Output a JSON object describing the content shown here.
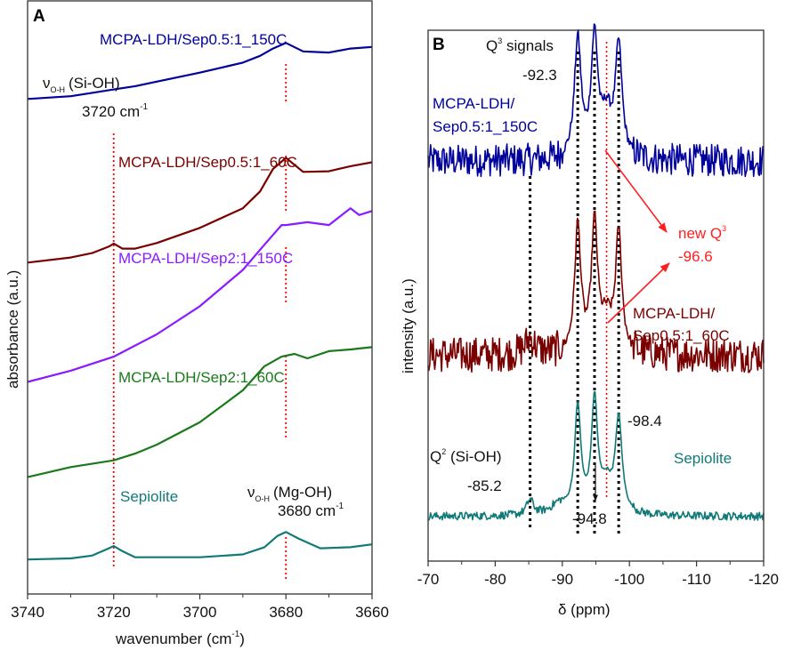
{
  "chart_data": [
    {
      "panel_label": "A",
      "type": "line",
      "title": "",
      "xlabel": "wavenumber (cm⁻¹)",
      "xlabel_main": "wavenumber (cm",
      "xlabel_sup": "-1",
      "xlabel_end": ")",
      "ylabel": "absorbance (a.u.)",
      "xlim": [
        3740,
        3660
      ],
      "x_reversed": true,
      "ylim": [
        0,
        10
      ],
      "xticks": [
        3740,
        3720,
        3700,
        3680,
        3660
      ],
      "xticks_minor": [
        3730,
        3710,
        3690,
        3670
      ],
      "yticks": [],
      "grid": false,
      "reference_lines": [
        {
          "x": 3720,
          "color": "#ff0000",
          "style": "dotted"
        },
        {
          "x": 3680,
          "color": "#ff0000",
          "style": "dotted"
        }
      ],
      "series": [
        {
          "name": "MCPA-LDH/Sep0.5:1_150C",
          "color": "#00009c",
          "x": [
            3740,
            3730,
            3725,
            3720,
            3715,
            3710,
            3700,
            3690,
            3686,
            3683,
            3680,
            3676,
            3670,
            3665,
            3660
          ],
          "y": [
            8.55,
            8.6,
            8.66,
            8.72,
            8.78,
            8.86,
            9.02,
            9.2,
            9.32,
            9.45,
            9.55,
            9.4,
            9.38,
            9.45,
            9.48
          ]
        },
        {
          "name": "MCPA-LDH/Sep0.5:1_60C",
          "color": "#7a0000",
          "x": [
            3740,
            3730,
            3725,
            3721,
            3720,
            3718,
            3715,
            3710,
            3700,
            3690,
            3686,
            3683,
            3680,
            3676,
            3670,
            3665,
            3660
          ],
          "y": [
            5.63,
            5.72,
            5.8,
            5.92,
            5.97,
            5.88,
            5.88,
            5.98,
            6.25,
            6.6,
            6.9,
            7.3,
            7.5,
            7.25,
            7.26,
            7.35,
            7.42
          ]
        },
        {
          "name": "MCPA-LDH/Sep2:1_150C",
          "color": "#8a1cff",
          "x": [
            3740,
            3730,
            3720,
            3710,
            3700,
            3690,
            3685,
            3681,
            3680,
            3675,
            3670,
            3667,
            3665,
            3663,
            3660
          ],
          "y": [
            3.5,
            3.7,
            3.95,
            4.35,
            4.85,
            5.5,
            5.95,
            6.3,
            6.3,
            6.35,
            6.3,
            6.48,
            6.6,
            6.48,
            6.55
          ]
        },
        {
          "name": "MCPA-LDH/Sep2:1_60C",
          "color": "#1a7a1a",
          "x": [
            3740,
            3730,
            3720,
            3715,
            3710,
            3700,
            3690,
            3685,
            3681,
            3678,
            3675,
            3670,
            3665,
            3660
          ],
          "y": [
            1.8,
            1.98,
            2.1,
            2.22,
            2.38,
            2.78,
            3.35,
            3.78,
            3.95,
            4.0,
            3.92,
            4.05,
            4.08,
            4.12
          ]
        },
        {
          "name": "Sepiolite",
          "color": "#117a78",
          "x": [
            3740,
            3730,
            3725,
            3722,
            3720,
            3718,
            3715,
            3700,
            3690,
            3685,
            3682,
            3680,
            3677,
            3672,
            3665,
            3660
          ],
          "y": [
            0.33,
            0.35,
            0.4,
            0.5,
            0.57,
            0.48,
            0.37,
            0.37,
            0.42,
            0.55,
            0.75,
            0.82,
            0.7,
            0.53,
            0.55,
            0.6
          ]
        }
      ],
      "annotations": [
        {
          "text": "MCPA-LDH/Sep0.5:1_150C",
          "color": "#00009c",
          "series": 0
        },
        {
          "text": "MCPA-LDH/Sep0.5:1_60C",
          "color": "#7a0000",
          "series": 1
        },
        {
          "text": "MCPA-LDH/Sep2:1_150C",
          "color": "#8a1cff",
          "series": 2
        },
        {
          "text": "MCPA-LDH/Sep2:1_60C",
          "color": "#1a7a1a",
          "series": 3
        },
        {
          "text": "Sepiolite",
          "color": "#117a78",
          "series": 4
        },
        {
          "nu": "ν",
          "sub": "O-H",
          "text": "(Si-OH)",
          "value": "3720 cm",
          "sup": "-1",
          "color": "#111111"
        },
        {
          "nu": "ν",
          "sub": "O-H",
          "text": "(Mg-OH)",
          "value": "3680 cm",
          "sup": "-1",
          "color": "#111111"
        }
      ]
    },
    {
      "panel_label": "B",
      "type": "line",
      "title": "",
      "xlabel": "δ (ppm)",
      "ylabel": "intensity (a.u.)",
      "xlim": [
        -70,
        -120
      ],
      "x_reversed": true,
      "ylim": [
        0,
        10
      ],
      "xticks": [
        -70,
        -80,
        -90,
        -100,
        -110,
        -120
      ],
      "xticks_minor": [
        -75,
        -85,
        -95,
        -105,
        -115
      ],
      "yticks": [],
      "grid": false,
      "reference_lines": [
        {
          "x": -85.2,
          "color": "#000000",
          "style": "dotted"
        },
        {
          "x": -92.3,
          "color": "#000000",
          "style": "dotted"
        },
        {
          "x": -94.8,
          "color": "#000000",
          "style": "dotted"
        },
        {
          "x": -98.4,
          "color": "#000000",
          "style": "dotted"
        },
        {
          "x": -96.6,
          "color": "#ff0000",
          "style": "dotted"
        }
      ],
      "peaks": [
        -85.2,
        -92.3,
        -94.8,
        -96.6,
        -98.4
      ],
      "series": [
        {
          "name": "MCPA-LDH/Sep0.5:1_150C",
          "color": "#00009c",
          "baseline": 7.6,
          "noise": 0.32,
          "peaks": [
            {
              "center": -92.3,
              "height": 2.35,
              "width": 0.6
            },
            {
              "center": -94.8,
              "height": 2.35,
              "width": 0.6
            },
            {
              "center": -98.4,
              "height": 2.2,
              "width": 0.6
            },
            {
              "center": -96.6,
              "height": 0.8,
              "width": 0.9
            }
          ]
        },
        {
          "name": "MCPA-LDH/Sep0.5:1_60C",
          "color": "#7a0000",
          "baseline": 3.75,
          "noise": 0.35,
          "peaks": [
            {
              "center": -92.3,
              "height": 2.5,
              "width": 0.55
            },
            {
              "center": -94.8,
              "height": 2.5,
              "width": 0.55
            },
            {
              "center": -98.4,
              "height": 2.35,
              "width": 0.55
            },
            {
              "center": -96.6,
              "height": 0.6,
              "width": 1.0
            },
            {
              "center": -85.2,
              "height": 0.3,
              "width": 0.9
            }
          ]
        },
        {
          "name": "Sepiolite",
          "color": "#117a78",
          "baseline": 0.55,
          "noise": 0.08,
          "peaks": [
            {
              "center": -92.3,
              "height": 2.1,
              "width": 0.55
            },
            {
              "center": -94.8,
              "height": 2.2,
              "width": 0.55
            },
            {
              "center": -98.4,
              "height": 1.85,
              "width": 0.6
            },
            {
              "center": -96.6,
              "height": 0.55,
              "width": 1.0
            },
            {
              "center": -85.2,
              "height": 0.3,
              "width": 0.6
            },
            {
              "center": -89.5,
              "height": 0.2,
              "width": 1.5
            }
          ]
        }
      ],
      "annotations": [
        {
          "text": "Q",
          "sup": "3",
          "rest": " signals",
          "color": "#111111"
        },
        {
          "text": "-92.3",
          "color": "#111111"
        },
        {
          "text": "MCPA-LDH/",
          "color": "#00009c"
        },
        {
          "text": "Sep0.5:1_150C",
          "color": "#00009c"
        },
        {
          "text": "new Q",
          "sup": "3",
          "color": "#ff2020"
        },
        {
          "text": "-96.6",
          "color": "#ff2020"
        },
        {
          "text": "MCPA-LDH/",
          "color": "#7a0000"
        },
        {
          "text": "Sep0.5:1_60C",
          "color": "#7a0000"
        },
        {
          "text": "-98.4",
          "color": "#111111"
        },
        {
          "text": "Q",
          "sup": "2",
          "rest": " (Si-OH)",
          "color": "#111111"
        },
        {
          "text": "-85.2",
          "color": "#111111"
        },
        {
          "text": "-94.8",
          "color": "#111111"
        },
        {
          "text": "Sepiolite",
          "color": "#117a78"
        }
      ]
    }
  ]
}
